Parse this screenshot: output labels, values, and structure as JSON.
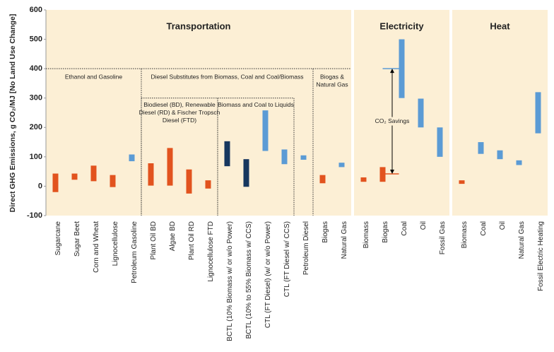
{
  "chart_data": {
    "type": "floating-bar",
    "y_label": "Direct GHG Emissions, g CO₂/MJ [No Land Use Change]",
    "ylim": [
      -100,
      600
    ],
    "yticks": [
      -100,
      0,
      100,
      200,
      300,
      400,
      500,
      600
    ],
    "panels": [
      {
        "title": "Transportation",
        "groups": [
          {
            "label": [
              "Ethanol and Gasoline"
            ],
            "level": 400,
            "subgroups": [
              {
                "categories": [
                  "Sugarcane",
                  "Sugar Beet",
                  "Corn and Wheat",
                  "Lignocellulose",
                  "Petroleum Gasoline"
                ],
                "low": [
                  -20,
                  22,
                  17,
                  -3,
                  85
                ],
                "high": [
                  43,
                  43,
                  70,
                  38,
                  108
                ],
                "colors": [
                  "#e2531e",
                  "#e2531e",
                  "#e2531e",
                  "#e2531e",
                  "#5b9bd5"
                ]
              }
            ]
          },
          {
            "label": [
              "Diesel Substitutes from Biomass, Coal and Coal/Biomass"
            ],
            "level": 400,
            "subgroups": [
              {
                "label": [
                  "Biodiesel (BD), Renewable",
                  "Diesel (RD) & Fischer Tropsch",
                  "Diesel (FTD)"
                ],
                "level": 300,
                "categories": [
                  "Plant Oil BD",
                  "Algae BD",
                  "Plant Oil RD",
                  "Lignocellulose FTD"
                ],
                "low": [
                  2,
                  2,
                  -25,
                  -8
                ],
                "high": [
                  78,
                  130,
                  57,
                  20
                ],
                "colors": [
                  "#e2531e",
                  "#e2531e",
                  "#e2531e",
                  "#e2531e"
                ]
              },
              {
                "label": [
                  "Biomass and Coal to Liquids"
                ],
                "level": 300,
                "categories": [
                  "BCTL (10% Biomass w/ or w/o Power)",
                  "BCTL (10% to 55% Biomass w/ CCS)",
                  "CTL (FT Diesel) (w/ or w/o Power)",
                  "CTL (FT Diesel w/ CCS)"
                ],
                "low": [
                  68,
                  -2,
                  120,
                  75
                ],
                "high": [
                  153,
                  92,
                  258,
                  125
                ],
                "colors": [
                  "#17375e",
                  "#17375e",
                  "#5b9bd5",
                  "#5b9bd5"
                ]
              },
              {
                "categories": [
                  "Petroleum Diesel"
                ],
                "low": [
                  90
                ],
                "high": [
                  105
                ],
                "colors": [
                  "#5b9bd5"
                ]
              }
            ]
          },
          {
            "label": [
              "Biogas &",
              "Natural Gas"
            ],
            "level": 400,
            "subgroups": [
              {
                "categories": [
                  "Biogas",
                  "Natural Gas"
                ],
                "low": [
                  10,
                  65
                ],
                "high": [
                  38,
                  80
                ],
                "colors": [
                  "#e2531e",
                  "#5b9bd5"
                ]
              }
            ]
          }
        ]
      },
      {
        "title": "Electricity",
        "annotation": {
          "text": "CO₂ Savings",
          "from": 42,
          "to": 400
        },
        "groups": [
          {
            "subgroups": [
              {
                "categories": [
                  "Biomass",
                  "Biogas",
                  "Coal",
                  "Oil",
                  "Fossil Gas"
                ],
                "low": [
                  15,
                  15,
                  300,
                  200,
                  100
                ],
                "high": [
                  30,
                  65,
                  500,
                  298,
                  200
                ],
                "colors": [
                  "#e2531e",
                  "#e2531e",
                  "#5b9bd5",
                  "#5b9bd5",
                  "#5b9bd5"
                ]
              }
            ]
          }
        ]
      },
      {
        "title": "Heat",
        "groups": [
          {
            "subgroups": [
              {
                "categories": [
                  "Biomass",
                  "Coal",
                  "Oil",
                  "Natural Gas",
                  "Fossil Electric Heating"
                ],
                "low": [
                  8,
                  110,
                  92,
                  72,
                  180
                ],
                "high": [
                  20,
                  150,
                  122,
                  88,
                  320
                ],
                "colors": [
                  "#e2531e",
                  "#5b9bd5",
                  "#5b9bd5",
                  "#5b9bd5",
                  "#5b9bd5"
                ]
              }
            ]
          }
        ]
      }
    ]
  }
}
